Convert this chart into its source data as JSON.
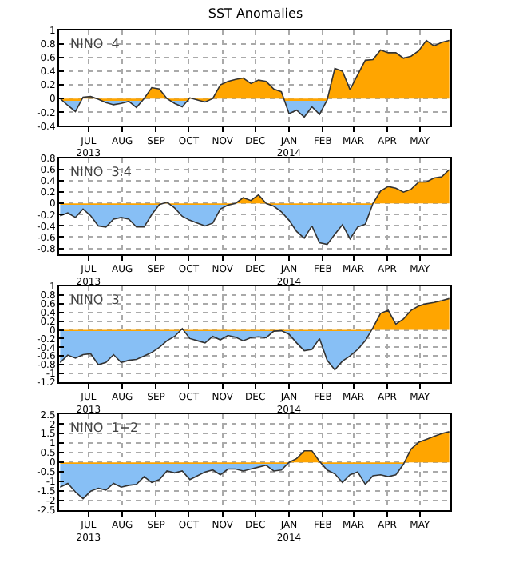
{
  "chart_data": [
    {
      "type": "area",
      "title": "SST Anomalies",
      "annotations": [
        "NINO  4"
      ],
      "x": [
        "2013-06-19",
        "2013-06-26",
        "2013-07-03",
        "2013-07-10",
        "2013-07-17",
        "2013-07-24",
        "2013-07-31",
        "2013-08-07",
        "2013-08-14",
        "2013-08-21",
        "2013-08-28",
        "2013-09-04",
        "2013-09-11",
        "2013-09-18",
        "2013-09-25",
        "2013-10-02",
        "2013-10-09",
        "2013-10-16",
        "2013-10-23",
        "2013-10-30",
        "2013-11-06",
        "2013-11-13",
        "2013-11-20",
        "2013-11-27",
        "2013-12-04",
        "2013-12-11",
        "2013-12-18",
        "2013-12-25",
        "2014-01-01",
        "2014-01-08",
        "2014-01-15",
        "2014-01-22",
        "2014-01-29",
        "2014-02-05",
        "2014-02-12",
        "2014-02-19",
        "2014-02-26",
        "2014-03-05",
        "2014-03-12",
        "2014-03-19",
        "2014-03-26",
        "2014-04-02",
        "2014-04-09",
        "2014-04-16",
        "2014-04-23",
        "2014-04-30",
        "2014-05-07",
        "2014-05-14",
        "2014-05-21",
        "2014-05-28",
        "2014-06-04",
        "2014-06-11"
      ],
      "series": [
        {
          "color": "#333333",
          "values": [
            0,
            -0.1,
            -0.19,
            0.02,
            0.03,
            -0.01,
            -0.06,
            -0.09,
            -0.07,
            -0.04,
            -0.13,
            0.0,
            0.16,
            0.14,
            0.0,
            -0.07,
            -0.12,
            0.01,
            -0.02,
            -0.05,
            0.0,
            0.2,
            0.25,
            0.28,
            0.3,
            0.22,
            0.27,
            0.25,
            0.14,
            0.1,
            -0.22,
            -0.17,
            -0.27,
            -0.12,
            -0.23,
            -0.02,
            0.44,
            0.4,
            0.13,
            0.35,
            0.56,
            0.57,
            0.71,
            0.67,
            0.67,
            0.59,
            0.62,
            0.7,
            0.85,
            0.77,
            0.82,
            0.85
          ]
        }
      ],
      "colors": [
        "#ffa500",
        "#87bff5"
      ],
      "xlim": [
        "2013-06-18",
        "2014-06-12"
      ],
      "xticks": [
        {
          "value": "2013-07-15",
          "label": "JUL\n2013"
        },
        {
          "value": "2013-08-15",
          "label": "AUG"
        },
        {
          "value": "2013-09-15",
          "label": "SEP"
        },
        {
          "value": "2013-10-15",
          "label": "OCT"
        },
        {
          "value": "2013-11-15",
          "label": "NOV"
        },
        {
          "value": "2013-12-15",
          "label": "DEC"
        },
        {
          "value": "2014-01-15",
          "label": "JAN\n2014"
        },
        {
          "value": "2014-02-15",
          "label": "FEB"
        },
        {
          "value": "2014-03-15",
          "label": "MAR"
        },
        {
          "value": "2014-04-15",
          "label": "APR"
        },
        {
          "value": "2014-05-15",
          "label": "MAY"
        }
      ],
      "ylim": [
        -0.4,
        1
      ],
      "yticks": [
        -0.4,
        -0.2,
        0,
        0.2,
        0.4,
        0.6,
        0.8,
        1
      ],
      "grid": true
    },
    {
      "type": "area",
      "annotations": [
        "NINO  3.4"
      ],
      "x": [
        "2013-06-19",
        "2013-06-26",
        "2013-07-03",
        "2013-07-10",
        "2013-07-17",
        "2013-07-24",
        "2013-07-31",
        "2013-08-07",
        "2013-08-14",
        "2013-08-21",
        "2013-08-28",
        "2013-09-04",
        "2013-09-11",
        "2013-09-18",
        "2013-09-25",
        "2013-10-02",
        "2013-10-09",
        "2013-10-16",
        "2013-10-23",
        "2013-10-30",
        "2013-11-06",
        "2013-11-13",
        "2013-11-20",
        "2013-11-27",
        "2013-12-04",
        "2013-12-11",
        "2013-12-18",
        "2013-12-25",
        "2014-01-01",
        "2014-01-08",
        "2014-01-15",
        "2014-01-22",
        "2014-01-29",
        "2014-02-05",
        "2014-02-12",
        "2014-02-19",
        "2014-02-26",
        "2014-03-05",
        "2014-03-12",
        "2014-03-19",
        "2014-03-26",
        "2014-04-02",
        "2014-04-09",
        "2014-04-16",
        "2014-04-23",
        "2014-04-30",
        "2014-05-07",
        "2014-05-14",
        "2014-05-21",
        "2014-05-28",
        "2014-06-04",
        "2014-06-11"
      ],
      "series": [
        {
          "color": "#333333",
          "values": [
            -0.22,
            -0.17,
            -0.25,
            -0.1,
            -0.22,
            -0.4,
            -0.42,
            -0.28,
            -0.25,
            -0.28,
            -0.42,
            -0.42,
            -0.2,
            -0.02,
            0.02,
            -0.08,
            -0.23,
            -0.3,
            -0.35,
            -0.4,
            -0.35,
            -0.1,
            -0.03,
            0.0,
            0.1,
            0.05,
            0.15,
            0.0,
            -0.05,
            -0.15,
            -0.3,
            -0.5,
            -0.62,
            -0.4,
            -0.7,
            -0.73,
            -0.55,
            -0.38,
            -0.63,
            -0.42,
            -0.37,
            0.0,
            0.22,
            0.3,
            0.27,
            0.2,
            0.25,
            0.38,
            0.38,
            0.45,
            0.47,
            0.6
          ]
        }
      ],
      "colors": [
        "#ffa500",
        "#87bff5"
      ],
      "xlim": [
        "2013-06-18",
        "2014-06-12"
      ],
      "xticks": [
        {
          "value": "2013-07-15",
          "label": "JUL\n2013"
        },
        {
          "value": "2013-08-15",
          "label": "AUG"
        },
        {
          "value": "2013-09-15",
          "label": "SEP"
        },
        {
          "value": "2013-10-15",
          "label": "OCT"
        },
        {
          "value": "2013-11-15",
          "label": "NOV"
        },
        {
          "value": "2013-12-15",
          "label": "DEC"
        },
        {
          "value": "2014-01-15",
          "label": "JAN\n2014"
        },
        {
          "value": "2014-02-15",
          "label": "FEB"
        },
        {
          "value": "2014-03-15",
          "label": "MAR"
        },
        {
          "value": "2014-04-15",
          "label": "APR"
        },
        {
          "value": "2014-05-15",
          "label": "MAY"
        }
      ],
      "ylim": [
        -0.9,
        0.8
      ],
      "yticks": [
        -0.8,
        -0.6,
        -0.4,
        -0.2,
        0,
        0.2,
        0.4,
        0.6,
        0.8
      ],
      "grid": true
    },
    {
      "type": "area",
      "annotations": [
        "NINO  3"
      ],
      "x": [
        "2013-06-19",
        "2013-06-26",
        "2013-07-03",
        "2013-07-10",
        "2013-07-17",
        "2013-07-24",
        "2013-07-31",
        "2013-08-07",
        "2013-08-14",
        "2013-08-21",
        "2013-08-28",
        "2013-09-04",
        "2013-09-11",
        "2013-09-18",
        "2013-09-25",
        "2013-10-02",
        "2013-10-09",
        "2013-10-16",
        "2013-10-23",
        "2013-10-30",
        "2013-11-06",
        "2013-11-13",
        "2013-11-20",
        "2013-11-27",
        "2013-12-04",
        "2013-12-11",
        "2013-12-18",
        "2013-12-25",
        "2014-01-01",
        "2014-01-08",
        "2014-01-15",
        "2014-01-22",
        "2014-01-29",
        "2014-02-05",
        "2014-02-12",
        "2014-02-19",
        "2014-02-26",
        "2014-03-05",
        "2014-03-12",
        "2014-03-19",
        "2014-03-26",
        "2014-04-02",
        "2014-04-09",
        "2014-04-16",
        "2014-04-23",
        "2014-04-30",
        "2014-05-07",
        "2014-05-14",
        "2014-05-21",
        "2014-05-28",
        "2014-06-04",
        "2014-06-11"
      ],
      "series": [
        {
          "color": "#333333",
          "values": [
            -0.75,
            -0.58,
            -0.65,
            -0.57,
            -0.55,
            -0.8,
            -0.75,
            -0.57,
            -0.75,
            -0.7,
            -0.68,
            -0.6,
            -0.52,
            -0.4,
            -0.25,
            -0.15,
            0.03,
            -0.2,
            -0.25,
            -0.3,
            -0.15,
            -0.23,
            -0.13,
            -0.17,
            -0.25,
            -0.18,
            -0.16,
            -0.18,
            -0.03,
            -0.02,
            -0.1,
            -0.3,
            -0.48,
            -0.45,
            -0.2,
            -0.7,
            -0.92,
            -0.72,
            -0.6,
            -0.45,
            -0.25,
            0.05,
            0.38,
            0.45,
            0.13,
            0.25,
            0.45,
            0.55,
            0.6,
            0.63,
            0.67,
            0.72
          ]
        }
      ],
      "colors": [
        "#ffa500",
        "#87bff5"
      ],
      "xlim": [
        "2013-06-18",
        "2014-06-12"
      ],
      "xticks": [
        {
          "value": "2013-07-15",
          "label": "JUL\n2013"
        },
        {
          "value": "2013-08-15",
          "label": "AUG"
        },
        {
          "value": "2013-09-15",
          "label": "SEP"
        },
        {
          "value": "2013-10-15",
          "label": "OCT"
        },
        {
          "value": "2013-11-15",
          "label": "NOV"
        },
        {
          "value": "2013-12-15",
          "label": "DEC"
        },
        {
          "value": "2014-01-15",
          "label": "JAN\n2014"
        },
        {
          "value": "2014-02-15",
          "label": "FEB"
        },
        {
          "value": "2014-03-15",
          "label": "MAR"
        },
        {
          "value": "2014-04-15",
          "label": "APR"
        },
        {
          "value": "2014-05-15",
          "label": "MAY"
        }
      ],
      "ylim": [
        -1.2,
        1
      ],
      "yticks": [
        -1.2,
        -1,
        -0.8,
        -0.6,
        -0.4,
        -0.2,
        0,
        0.2,
        0.4,
        0.6,
        0.8,
        1
      ],
      "grid": true
    },
    {
      "type": "area",
      "annotations": [
        "NINO  1+2"
      ],
      "x": [
        "2013-06-19",
        "2013-06-26",
        "2013-07-03",
        "2013-07-10",
        "2013-07-17",
        "2013-07-24",
        "2013-07-31",
        "2013-08-07",
        "2013-08-14",
        "2013-08-21",
        "2013-08-28",
        "2013-09-04",
        "2013-09-11",
        "2013-09-18",
        "2013-09-25",
        "2013-10-02",
        "2013-10-09",
        "2013-10-16",
        "2013-10-23",
        "2013-10-30",
        "2013-11-06",
        "2013-11-13",
        "2013-11-20",
        "2013-11-27",
        "2013-12-04",
        "2013-12-11",
        "2013-12-18",
        "2013-12-25",
        "2014-01-01",
        "2014-01-08",
        "2014-01-15",
        "2014-01-22",
        "2014-01-29",
        "2014-02-05",
        "2014-02-12",
        "2014-02-19",
        "2014-02-26",
        "2014-03-05",
        "2014-03-12",
        "2014-03-19",
        "2014-03-26",
        "2014-04-02",
        "2014-04-09",
        "2014-04-16",
        "2014-04-23",
        "2014-04-30",
        "2014-05-07",
        "2014-05-14",
        "2014-05-21",
        "2014-05-28",
        "2014-06-04",
        "2014-06-11"
      ],
      "series": [
        {
          "color": "#333333",
          "values": [
            -1.3,
            -1.1,
            -1.55,
            -1.9,
            -1.5,
            -1.35,
            -1.45,
            -1.1,
            -1.3,
            -1.2,
            -1.15,
            -0.75,
            -1.05,
            -0.9,
            -0.45,
            -0.55,
            -0.45,
            -0.9,
            -0.7,
            -0.5,
            -0.4,
            -0.65,
            -0.35,
            -0.35,
            -0.45,
            -0.35,
            -0.25,
            -0.15,
            -0.45,
            -0.4,
            0.0,
            0.2,
            0.6,
            0.6,
            0.05,
            -0.4,
            -0.6,
            -1.05,
            -0.65,
            -0.5,
            -1.15,
            -0.7,
            -0.65,
            -0.75,
            -0.65,
            -0.1,
            0.7,
            1.05,
            1.2,
            1.35,
            1.5,
            1.6
          ]
        }
      ],
      "colors": [
        "#ffa500",
        "#87bff5"
      ],
      "xlim": [
        "2013-06-18",
        "2014-06-12"
      ],
      "xticks": [
        {
          "value": "2013-07-15",
          "label": "JUL\n2013"
        },
        {
          "value": "2013-08-15",
          "label": "AUG"
        },
        {
          "value": "2013-09-15",
          "label": "SEP"
        },
        {
          "value": "2013-10-15",
          "label": "OCT"
        },
        {
          "value": "2013-11-15",
          "label": "NOV"
        },
        {
          "value": "2013-12-15",
          "label": "DEC"
        },
        {
          "value": "2014-01-15",
          "label": "JAN\n2014"
        },
        {
          "value": "2014-02-15",
          "label": "FEB"
        },
        {
          "value": "2014-03-15",
          "label": "MAR"
        },
        {
          "value": "2014-04-15",
          "label": "APR"
        },
        {
          "value": "2014-05-15",
          "label": "MAY"
        }
      ],
      "ylim": [
        -2.5,
        2.5
      ],
      "yticks": [
        -2.5,
        -2,
        -1.5,
        -1,
        -0.5,
        0,
        0.5,
        1,
        1.5,
        2,
        2.5
      ],
      "grid": true
    }
  ]
}
